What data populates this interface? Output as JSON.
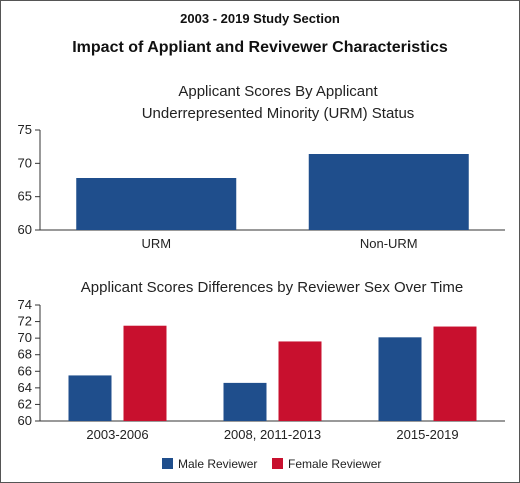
{
  "supertitle": "2003 - 2019 Study Section",
  "title": "Impact of Appliant and Revivewer Characteristics",
  "colors": {
    "navy": "#1f4e8c",
    "red": "#c8102e"
  },
  "chart_data": [
    {
      "type": "bar",
      "title_lines": [
        "Applicant Scores By Applicant",
        "Underrepresented Minority (URM) Status"
      ],
      "categories": [
        "URM",
        "Non-URM"
      ],
      "values": [
        67.8,
        71.4
      ],
      "ylim": [
        60,
        75
      ],
      "yticks": [
        60,
        65,
        70,
        75
      ],
      "xlabel": "",
      "ylabel": "",
      "grid": false
    },
    {
      "type": "bar",
      "title": "Applicant Scores Differences by Reviewer Sex Over Time",
      "categories": [
        "2003-2006",
        "2008, 2011-2013",
        "2015-2019"
      ],
      "series": [
        {
          "name": "Male Reviewer",
          "values": [
            65.5,
            64.6,
            70.1
          ]
        },
        {
          "name": "Female Reviewer",
          "values": [
            71.5,
            69.6,
            71.4
          ]
        }
      ],
      "ylim": [
        60,
        74
      ],
      "yticks": [
        60,
        62,
        64,
        66,
        68,
        70,
        72,
        74
      ],
      "legend": "bottom",
      "xlabel": "",
      "ylabel": "",
      "grid": false
    }
  ]
}
